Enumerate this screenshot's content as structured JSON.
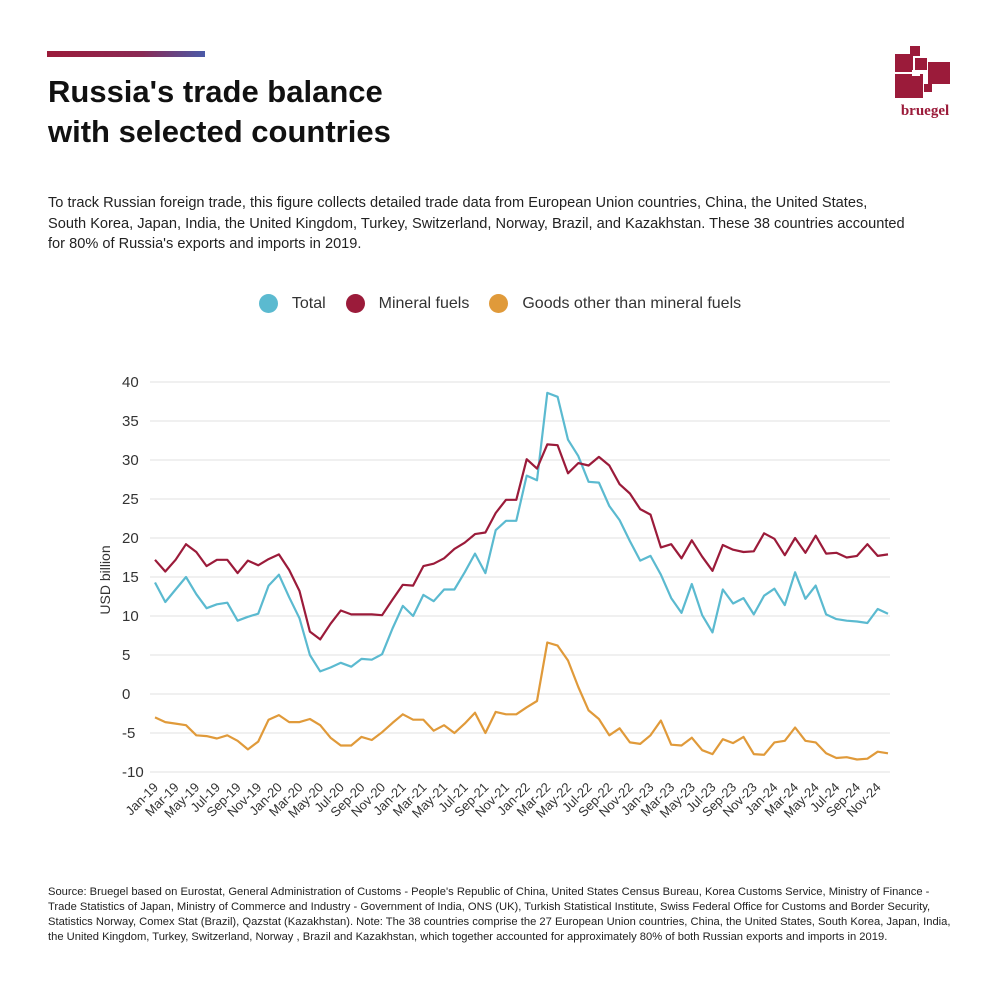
{
  "header": {
    "title_line1": "Russia's trade balance",
    "title_line2": "with selected countries",
    "subtitle": "To track Russian foreign trade, this figure collects detailed trade data from European Union countries, China, the United States, South Korea, Japan, India, the United Kingdom, Turkey, Switzerland, Norway, Brazil, and Kazakhstan. These 38 countries accounted for 80% of Russia's exports and imports in 2019."
  },
  "brand": {
    "logo_text": "bruegel",
    "logo_color": "#9b1b3a"
  },
  "legend": [
    {
      "label": "Total",
      "color": "#5bbad0"
    },
    {
      "label": "Mineral fuels",
      "color": "#9b1b3a"
    },
    {
      "label": "Goods other than mineral fuels",
      "color": "#e09a3a"
    }
  ],
  "footer": {
    "source": "Source: Bruegel based on Eurostat, General Administration of Customs - People's Republic of China, United States Census Bureau, Korea Customs Service, Ministry of Finance - Trade Statistics of Japan, Ministry of Commerce and Industry - Government of India, ONS (UK), Turkish Statistical Institute, Swiss Federal Office for Customs and Border Security, Statistics Norway, Comex Stat (Brazil), Qazstat (Kazakhstan). Note: The 38 countries comprise the 27 European Union countries, China, the United States, South Korea, Japan, India, the United Kingdom, Turkey, Switzerland, Norway , Brazil and Kazakhstan, which together accounted for approximately 80% of both Russian exports and imports in 2019."
  },
  "chart_data": {
    "type": "line",
    "ylabel": "USD billion",
    "ylim": [
      -10,
      40
    ],
    "yticks": [
      -10,
      -5,
      0,
      5,
      10,
      15,
      20,
      25,
      30,
      35,
      40
    ],
    "grid": "horizontal",
    "legend_position": "top-center",
    "x_tick_labels": [
      "Jan-19",
      "Mar-19",
      "May-19",
      "Jul-19",
      "Sep-19",
      "Nov-19",
      "Jan-20",
      "Mar-20",
      "May-20",
      "Jul-20",
      "Sep-20",
      "Nov-20",
      "Jan-21",
      "Mar-21",
      "May-21",
      "Jul-21",
      "Sep-21",
      "Nov-21",
      "Jan-22",
      "Mar-22",
      "May-22",
      "Jul-22",
      "Sep-22",
      "Nov-22",
      "Jan-23",
      "Mar-23",
      "May-23",
      "Jul-23",
      "Sep-23",
      "Nov-23",
      "Jan-24",
      "Mar-24",
      "May-24",
      "Jul-24",
      "Sep-24",
      "Nov-24"
    ],
    "x": [
      "Jan-19",
      "Feb-19",
      "Mar-19",
      "Apr-19",
      "May-19",
      "Jun-19",
      "Jul-19",
      "Aug-19",
      "Sep-19",
      "Oct-19",
      "Nov-19",
      "Dec-19",
      "Jan-20",
      "Feb-20",
      "Mar-20",
      "Apr-20",
      "May-20",
      "Jun-20",
      "Jul-20",
      "Aug-20",
      "Sep-20",
      "Oct-20",
      "Nov-20",
      "Dec-20",
      "Jan-21",
      "Feb-21",
      "Mar-21",
      "Apr-21",
      "May-21",
      "Jun-21",
      "Jul-21",
      "Aug-21",
      "Sep-21",
      "Oct-21",
      "Nov-21",
      "Dec-21",
      "Jan-22",
      "Feb-22",
      "Mar-22",
      "Apr-22",
      "May-22",
      "Jun-22",
      "Jul-22",
      "Aug-22",
      "Sep-22",
      "Oct-22",
      "Nov-22",
      "Dec-22",
      "Jan-23",
      "Feb-23",
      "Mar-23",
      "Apr-23",
      "May-23",
      "Jun-23",
      "Jul-23",
      "Aug-23",
      "Sep-23",
      "Oct-23",
      "Nov-23",
      "Dec-23",
      "Jan-24",
      "Feb-24",
      "Mar-24",
      "Apr-24",
      "May-24",
      "Jun-24",
      "Jul-24",
      "Aug-24",
      "Sep-24",
      "Oct-24",
      "Nov-24",
      "Dec-24"
    ],
    "series": [
      {
        "name": "Total",
        "color": "#5bbad0",
        "values": [
          14.3,
          11.8,
          13.4,
          15.0,
          12.8,
          11.0,
          11.5,
          11.7,
          9.4,
          9.9,
          10.3,
          13.9,
          15.3,
          12.4,
          9.7,
          5.0,
          2.9,
          3.4,
          4.0,
          3.5,
          4.5,
          4.4,
          5.1,
          8.4,
          11.3,
          10.0,
          12.7,
          11.9,
          13.4,
          13.4,
          15.6,
          18.0,
          15.5,
          21.0,
          22.2,
          22.2,
          28.0,
          27.4,
          38.6,
          38.1,
          32.6,
          30.5,
          27.2,
          27.1,
          24.1,
          22.3,
          19.6,
          17.1,
          17.7,
          15.3,
          12.3,
          10.4,
          14.1,
          10.1,
          7.9,
          13.4,
          11.6,
          12.3,
          10.2,
          12.6,
          13.5,
          11.4,
          15.6,
          12.2,
          13.9,
          10.2,
          9.6,
          9.4,
          9.3,
          9.1,
          10.9,
          10.3
        ]
      },
      {
        "name": "Mineral fuels",
        "color": "#9b1b3a",
        "values": [
          17.2,
          15.7,
          17.2,
          19.2,
          18.2,
          16.4,
          17.2,
          17.2,
          15.5,
          17.1,
          16.5,
          17.3,
          17.9,
          15.9,
          13.2,
          8.0,
          7.0,
          9.0,
          10.7,
          10.2,
          10.2,
          10.2,
          10.1,
          12.1,
          14.0,
          13.9,
          16.4,
          16.7,
          17.4,
          18.6,
          19.4,
          20.5,
          20.7,
          23.2,
          24.9,
          24.9,
          30.1,
          28.9,
          32.0,
          31.9,
          28.3,
          29.6,
          29.3,
          30.4,
          29.3,
          26.9,
          25.7,
          23.7,
          23.0,
          18.8,
          19.2,
          17.4,
          19.7,
          17.6,
          15.8,
          19.1,
          18.5,
          18.2,
          18.3,
          20.6,
          19.9,
          17.8,
          20.0,
          18.1,
          20.3,
          18.0,
          18.1,
          17.5,
          17.7,
          19.2,
          17.7,
          17.9
        ]
      },
      {
        "name": "Goods other than mineral fuels",
        "color": "#e09a3a",
        "values": [
          -3.0,
          -3.6,
          -3.8,
          -4.0,
          -5.3,
          -5.4,
          -5.7,
          -5.3,
          -6.0,
          -7.1,
          -6.1,
          -3.3,
          -2.7,
          -3.6,
          -3.6,
          -3.2,
          -4.0,
          -5.6,
          -6.6,
          -6.6,
          -5.5,
          -5.9,
          -4.9,
          -3.7,
          -2.6,
          -3.3,
          -3.3,
          -4.7,
          -4.0,
          -5.0,
          -3.8,
          -2.4,
          -5.0,
          -2.3,
          -2.6,
          -2.6,
          -1.7,
          -0.9,
          6.6,
          6.2,
          4.3,
          0.9,
          -2.1,
          -3.2,
          -5.3,
          -4.4,
          -6.2,
          -6.4,
          -5.3,
          -3.4,
          -6.5,
          -6.6,
          -5.6,
          -7.2,
          -7.7,
          -5.8,
          -6.3,
          -5.5,
          -7.7,
          -7.8,
          -6.2,
          -6.0,
          -4.3,
          -6.0,
          -6.2,
          -7.6,
          -8.2,
          -8.1,
          -8.4,
          -8.3,
          -7.4,
          -7.6
        ]
      }
    ]
  }
}
